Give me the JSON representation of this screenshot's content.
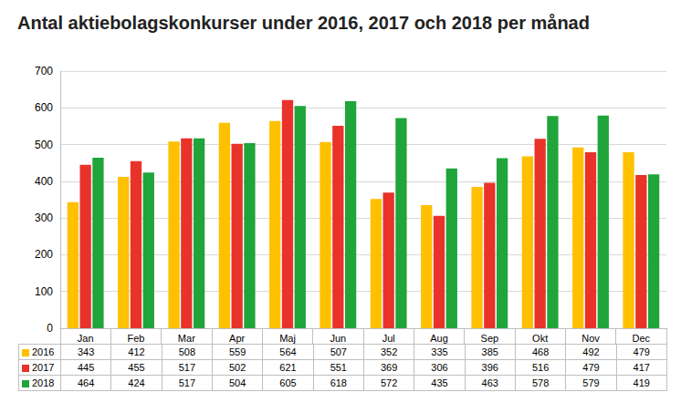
{
  "chart_data": {
    "type": "bar",
    "title": "Antal aktiebolagskonkurser under 2016, 2017 och 2018 per månad",
    "categories": [
      "Jan",
      "Feb",
      "Mar",
      "Apr",
      "Maj",
      "Jun",
      "Jul",
      "Aug",
      "Sep",
      "Okt",
      "Nov",
      "Dec"
    ],
    "series": [
      {
        "name": "2016",
        "color": "#FFC000",
        "values": [
          343,
          412,
          508,
          559,
          564,
          507,
          352,
          335,
          385,
          468,
          492,
          479
        ]
      },
      {
        "name": "2017",
        "color": "#E8322A",
        "values": [
          445,
          455,
          517,
          502,
          621,
          551,
          369,
          306,
          396,
          516,
          479,
          417
        ]
      },
      {
        "name": "2018",
        "color": "#1FA53A",
        "values": [
          464,
          424,
          517,
          504,
          605,
          618,
          572,
          435,
          463,
          578,
          579,
          419
        ]
      }
    ],
    "ylim": [
      0,
      700
    ],
    "yticks": [
      0,
      100,
      200,
      300,
      400,
      500,
      600,
      700
    ],
    "grid": true
  }
}
